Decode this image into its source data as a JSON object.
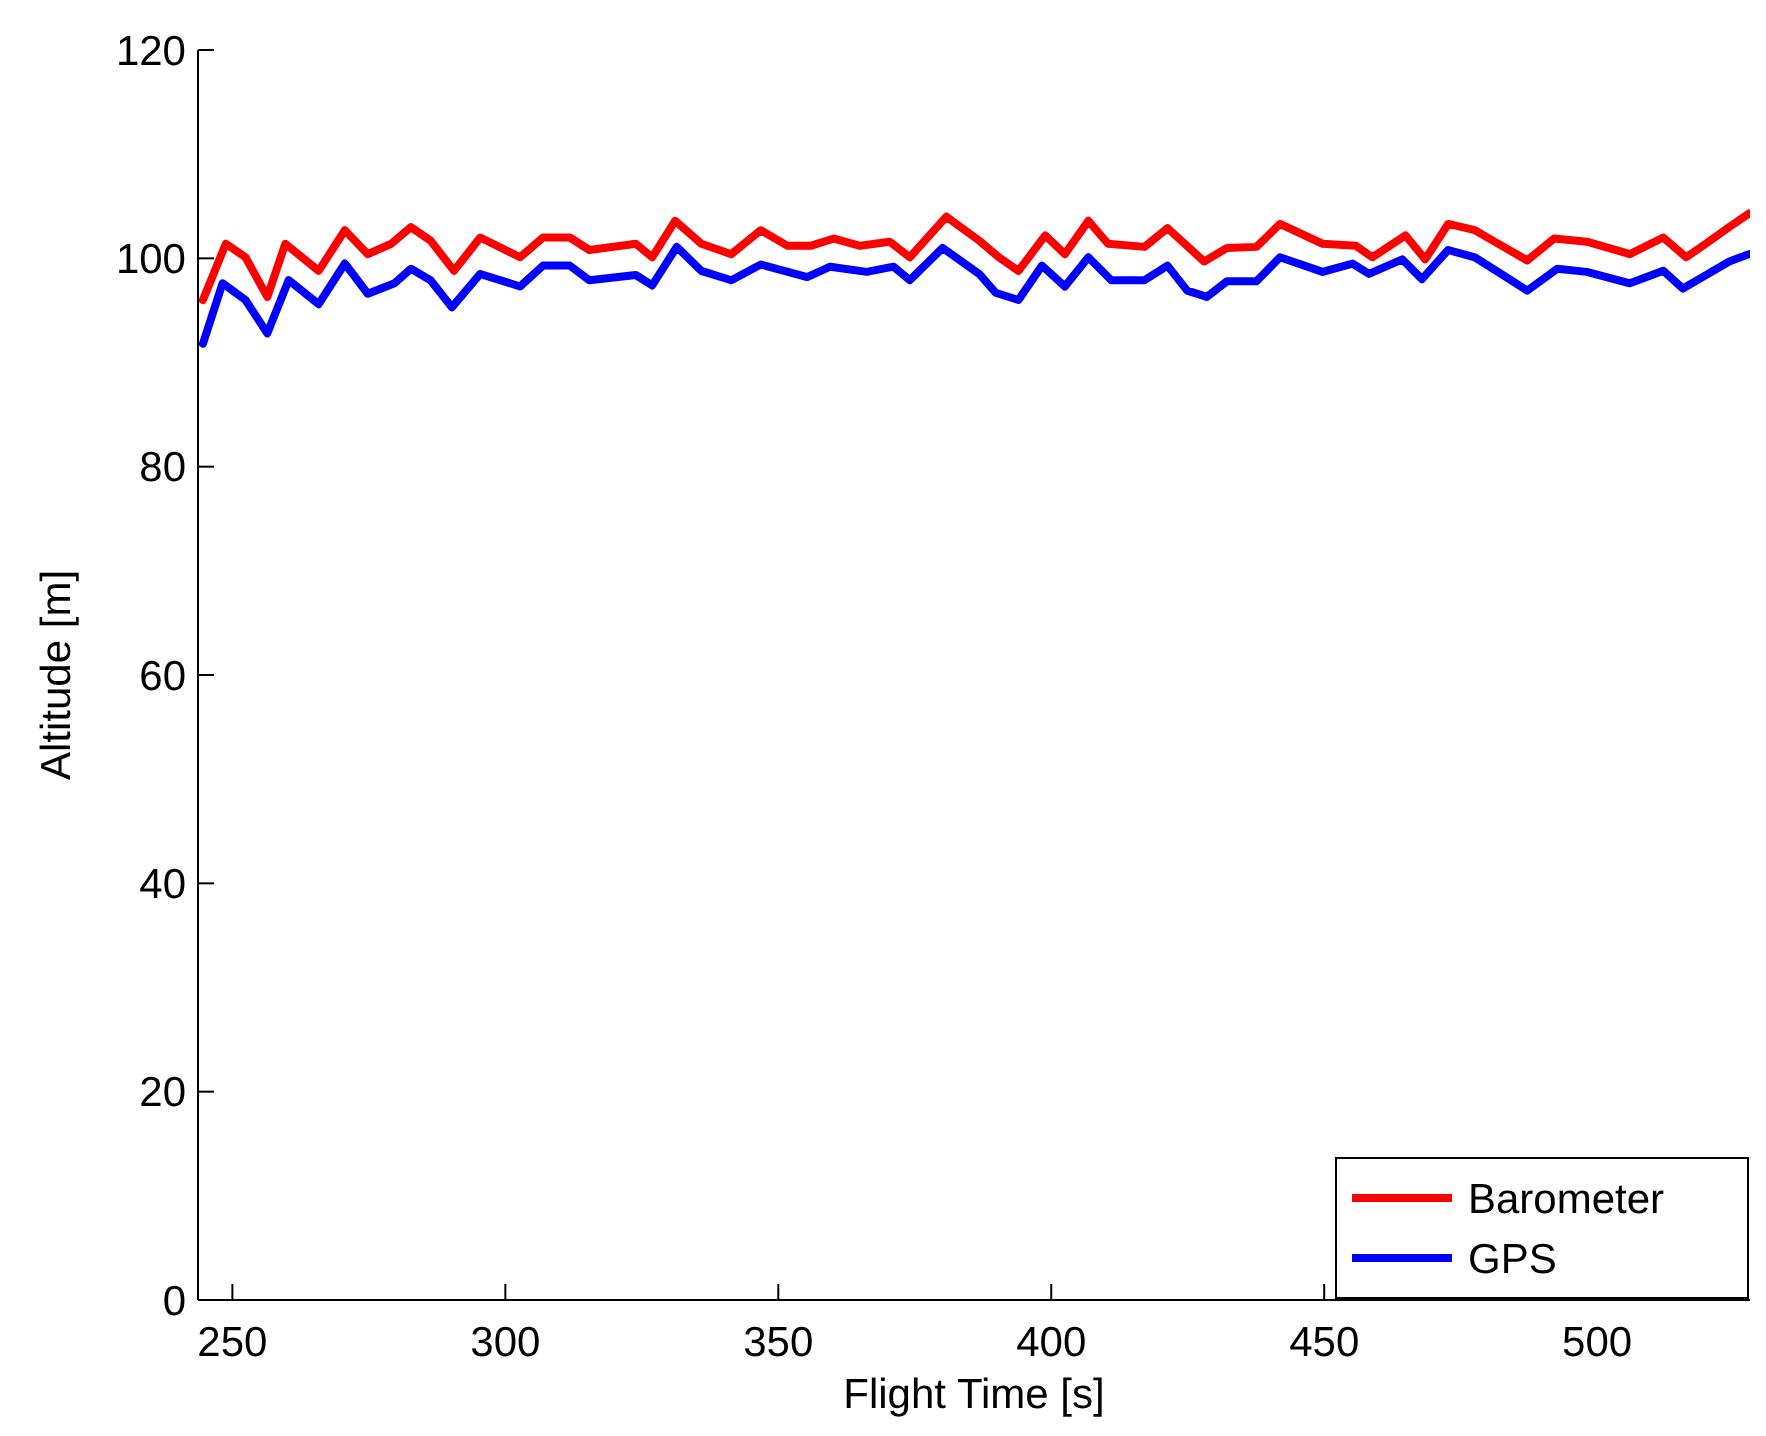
{
  "chart_data": {
    "type": "line",
    "xlabel": "Flight Time [s]",
    "ylabel": "Altitude [m]",
    "xlim": [
      243.7,
      528
    ],
    "ylim": [
      0,
      120
    ],
    "xticks": [
      250,
      300,
      350,
      400,
      450,
      500
    ],
    "yticks": [
      0,
      20,
      40,
      60,
      80,
      100,
      120
    ],
    "grid": false,
    "legend": "bottom right",
    "line_style": "solid",
    "marker": "none",
    "series": [
      {
        "name": "Barometer",
        "color": "#ff0000",
        "x": [
          244.6,
          248.8,
          252.4,
          256.4,
          259.7,
          265.8,
          270.6,
          274.8,
          279.1,
          282.7,
          286.3,
          290.6,
          295.4,
          302.7,
          306.9,
          311.8,
          315.4,
          323.9,
          326.9,
          331.1,
          335.9,
          341.4,
          346.8,
          351.7,
          355.9,
          360.2,
          365.0,
          370.4,
          374.1,
          380.8,
          386.8,
          390.4,
          394.0,
          398.9,
          402.5,
          406.8,
          410.4,
          417.1,
          421.3,
          428.0,
          432.2,
          437.6,
          441.9,
          449.7,
          455.8,
          458.8,
          464.9,
          468.5,
          472.7,
          477.6,
          481.2,
          487.2,
          492.1,
          498.1,
          506.0,
          512.1,
          516.3,
          519.9,
          524.2,
          527.8
        ],
        "values": [
          96.0,
          101.4,
          100.1,
          96.3,
          101.4,
          98.8,
          102.7,
          100.4,
          101.4,
          103.0,
          101.7,
          98.8,
          102.0,
          100.1,
          102.0,
          102.0,
          100.8,
          101.4,
          100.1,
          103.6,
          101.4,
          100.4,
          102.7,
          101.2,
          101.2,
          101.9,
          101.2,
          101.6,
          100.1,
          104.0,
          101.7,
          100.1,
          98.8,
          102.2,
          100.4,
          103.6,
          101.4,
          101.1,
          102.9,
          99.7,
          101.0,
          101.1,
          103.3,
          101.4,
          101.2,
          100.1,
          102.2,
          99.9,
          103.3,
          102.7,
          101.6,
          99.8,
          101.9,
          101.6,
          100.4,
          102.0,
          100.1,
          101.4,
          103.0,
          104.3
        ]
      },
      {
        "name": "GPS",
        "color": "#0000ff",
        "x": [
          244.6,
          248.2,
          252.4,
          256.4,
          260.3,
          265.8,
          270.6,
          274.8,
          279.7,
          282.7,
          286.3,
          290.2,
          295.4,
          302.7,
          306.9,
          311.8,
          315.4,
          323.9,
          326.9,
          331.4,
          335.9,
          341.4,
          346.8,
          355.3,
          359.5,
          366.2,
          371.1,
          374.1,
          380.1,
          386.8,
          389.8,
          394.0,
          398.3,
          402.5,
          406.8,
          411.0,
          417.1,
          421.3,
          424.9,
          428.5,
          432.2,
          437.6,
          441.9,
          449.7,
          455.2,
          458.2,
          464.3,
          467.9,
          472.7,
          477.6,
          482.4,
          487.2,
          492.7,
          498.1,
          506.0,
          512.1,
          515.7,
          519.3,
          524.2,
          527.8
        ],
        "values": [
          91.8,
          97.6,
          96.0,
          92.8,
          97.9,
          95.6,
          99.5,
          96.6,
          97.6,
          99.0,
          97.9,
          95.3,
          98.5,
          97.3,
          99.3,
          99.3,
          97.9,
          98.4,
          97.4,
          101.1,
          98.8,
          97.9,
          99.4,
          98.2,
          99.2,
          98.7,
          99.2,
          97.9,
          101.0,
          98.5,
          96.7,
          96.0,
          99.3,
          97.3,
          100.1,
          97.9,
          97.9,
          99.3,
          96.9,
          96.3,
          97.8,
          97.8,
          100.1,
          98.7,
          99.5,
          98.5,
          99.9,
          98.0,
          100.8,
          100.1,
          98.5,
          96.9,
          99.0,
          98.7,
          97.6,
          98.8,
          97.1,
          98.2,
          99.7,
          100.4
        ]
      }
    ]
  }
}
